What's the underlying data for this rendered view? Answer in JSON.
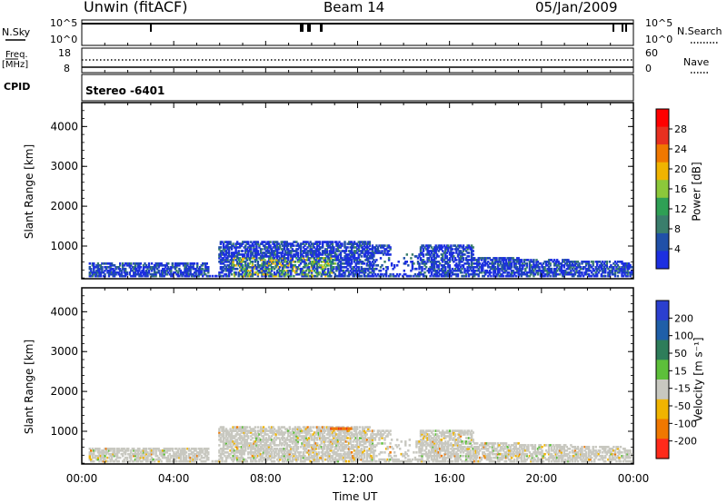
{
  "header": {
    "station": "Unwin (fitACF)",
    "beam": "Beam 14",
    "date": "05/Jan/2009"
  },
  "top_panels": {
    "nsky_label": "N.Sky",
    "nsky_ticks": [
      "10^5",
      "10^0"
    ],
    "nsearch_label": "N.Search",
    "nsearch_ticks": [
      "10^5",
      "10^0"
    ],
    "freq_label": "Freq.",
    "freq_unit": "[MHz]",
    "freq_ticks": [
      "18",
      "8"
    ],
    "nave_label": "Nave",
    "nave_ticks": [
      "60",
      "0"
    ],
    "cpid_label": "CPID",
    "cpid_value": "Stereo -6401"
  },
  "colors": {
    "power": [
      "#1c2fe0",
      "#2050a8",
      "#3a7e6c",
      "#2fa055",
      "#8cc83a",
      "#f0b400",
      "#f07800",
      "#e83020",
      "#ff0000"
    ],
    "velocity": [
      "#2b3fcf",
      "#1f5fa8",
      "#2e7d5a",
      "#5dbf3a",
      "#c8c8c0",
      "#f0b400",
      "#f07800",
      "#ff2a1a"
    ],
    "scatter_bg": "#c8c8c0"
  },
  "chart_data": [
    {
      "type": "heatmap",
      "panel": "power",
      "ylabel": "Slant Range [km]",
      "ylim": [
        180,
        4600
      ],
      "yticks": [
        1000,
        2000,
        3000,
        4000
      ],
      "xlim": [
        0,
        24
      ],
      "colorbar": {
        "label": "Power [dB]",
        "ticks": [
          "4",
          "8",
          "12",
          "16",
          "20",
          "24",
          "28"
        ]
      }
    },
    {
      "type": "heatmap",
      "panel": "velocity",
      "ylabel": "Slant Range [km]",
      "ylim": [
        180,
        4600
      ],
      "yticks": [
        1000,
        2000,
        3000,
        4000
      ],
      "xlim": [
        0,
        24
      ],
      "colorbar": {
        "label": "Velocity [m s⁻¹]",
        "ticks": [
          "200",
          "100",
          "50",
          "15",
          "-15",
          "-50",
          "-100",
          "-200"
        ]
      }
    }
  ],
  "xaxis": {
    "label": "Time UT",
    "ticks": [
      "00:00",
      "04:00",
      "08:00",
      "12:00",
      "16:00",
      "20:00",
      "00:00"
    ]
  }
}
